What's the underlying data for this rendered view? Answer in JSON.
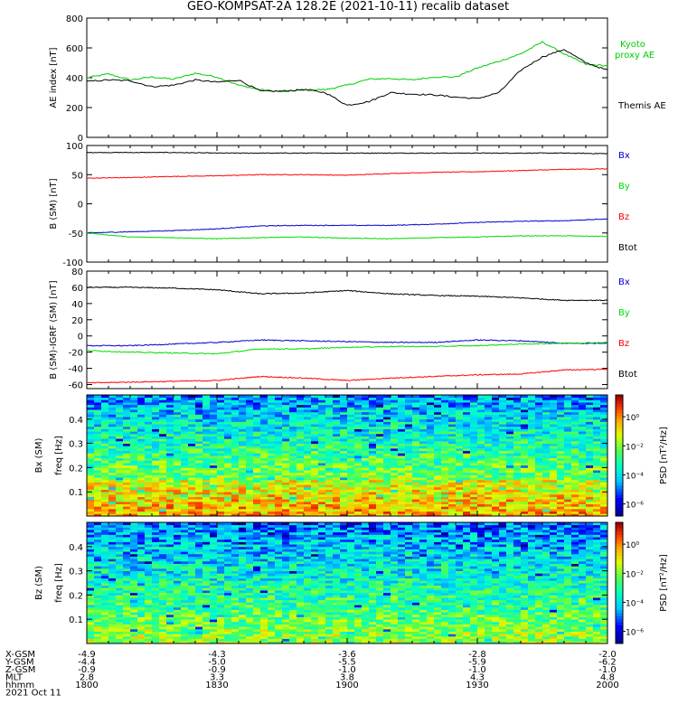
{
  "title": "GEO-KOMPSAT-2A 128.2E (2021-10-11) recalib dataset",
  "colors": {
    "black": "#000000",
    "red": "#ff0000",
    "green": "#00dd00",
    "blue": "#0000cc",
    "kyoto": "#00cc00"
  },
  "chart_data": [
    {
      "type": "line",
      "ylabel": "AE index [nT]",
      "ylim": [
        0,
        800
      ],
      "yticks": [
        "0",
        "200",
        "400",
        "600",
        "800"
      ],
      "legend": {
        "kyoto": "Kyoto proxy AE",
        "themis": "Themis AE"
      },
      "x_minutes": [
        0,
        5,
        10,
        15,
        20,
        25,
        30,
        35,
        40,
        45,
        50,
        55,
        60,
        65,
        70,
        75,
        80,
        85,
        90,
        95,
        100,
        105,
        110,
        115,
        120
      ],
      "series": [
        {
          "name": "Kyoto proxy AE",
          "color": "#00cc00",
          "values": [
            400,
            425,
            385,
            405,
            390,
            430,
            405,
            350,
            320,
            305,
            320,
            320,
            350,
            390,
            395,
            385,
            405,
            405,
            465,
            510,
            560,
            640,
            560,
            490,
            480
          ]
        },
        {
          "name": "Themis AE",
          "color": "#000000",
          "values": [
            375,
            385,
            380,
            340,
            350,
            385,
            370,
            385,
            310,
            310,
            320,
            300,
            215,
            240,
            300,
            290,
            285,
            270,
            260,
            300,
            450,
            540,
            590,
            500,
            450
          ]
        }
      ]
    },
    {
      "type": "line",
      "ylabel": "B (SM) [nT]",
      "ylim": [
        -100,
        100
      ],
      "yticks": [
        "-100",
        "-50",
        "0",
        "50",
        "100"
      ],
      "legend": [
        "Bx",
        "By",
        "Bz",
        "Btot"
      ],
      "x_minutes": [
        0,
        10,
        20,
        30,
        40,
        50,
        60,
        70,
        80,
        90,
        100,
        110,
        120
      ],
      "series": [
        {
          "name": "Btot",
          "color": "#000000",
          "values": [
            88,
            88,
            88,
            87,
            87,
            87,
            87,
            87,
            87,
            87,
            87,
            87,
            86
          ]
        },
        {
          "name": "Bz",
          "color": "#ff0000",
          "values": [
            44,
            45,
            47,
            48,
            50,
            50,
            49,
            52,
            54,
            55,
            57,
            59,
            60
          ]
        },
        {
          "name": "Bx",
          "color": "#0000cc",
          "values": [
            -50,
            -48,
            -46,
            -43,
            -38,
            -37,
            -37,
            -37,
            -35,
            -32,
            -30,
            -29,
            -26
          ]
        },
        {
          "name": "By",
          "color": "#00dd00",
          "values": [
            -50,
            -57,
            -58,
            -60,
            -58,
            -57,
            -59,
            -60,
            -58,
            -57,
            -55,
            -55,
            -56
          ]
        }
      ]
    },
    {
      "type": "line",
      "ylabel": "B (SM)-IGRF (SM) [nT]",
      "ylim": [
        -65,
        80
      ],
      "yticks": [
        "-60",
        "-40",
        "-20",
        "0",
        "20",
        "40",
        "60",
        "80"
      ],
      "legend": [
        "Bx",
        "By",
        "Bz",
        "Btot"
      ],
      "x_minutes": [
        0,
        10,
        20,
        30,
        40,
        50,
        60,
        70,
        80,
        90,
        100,
        110,
        120
      ],
      "series": [
        {
          "name": "Btot",
          "color": "#000000",
          "values": [
            60,
            60,
            59,
            57,
            52,
            53,
            56,
            52,
            50,
            49,
            47,
            44,
            44
          ]
        },
        {
          "name": "Bz",
          "color": "#ff0000",
          "values": [
            -58,
            -57,
            -56,
            -55,
            -50,
            -52,
            -55,
            -52,
            -50,
            -48,
            -47,
            -42,
            -41
          ]
        },
        {
          "name": "Bx",
          "color": "#0000cc",
          "values": [
            -12,
            -12,
            -10,
            -8,
            -5,
            -6,
            -7,
            -8,
            -8,
            -5,
            -6,
            -9,
            -9
          ]
        },
        {
          "name": "By",
          "color": "#00dd00",
          "values": [
            -18,
            -20,
            -21,
            -22,
            -16,
            -16,
            -14,
            -13,
            -13,
            -12,
            -10,
            -9,
            -8
          ]
        }
      ]
    },
    {
      "type": "heatmap",
      "ylabel": "Bx (SM) freq [Hz]",
      "ylim": [
        0,
        0.5
      ],
      "yticks": [
        "0.1",
        "0.2",
        "0.3",
        "0.4"
      ],
      "colorbar": {
        "label": "PSD [nT²/Hz]",
        "ticks": [
          "10⁰",
          "10⁻²",
          "10⁻⁴",
          "10⁻⁶"
        ]
      }
    },
    {
      "type": "heatmap",
      "ylabel": "Bz (SM) freq [Hz]",
      "ylim": [
        0,
        0.5
      ],
      "yticks": [
        "0.1",
        "0.2",
        "0.3",
        "0.4"
      ],
      "colorbar": {
        "label": "PSD [nT²/Hz]",
        "ticks": [
          "10⁰",
          "10⁻²",
          "10⁻⁴",
          "10⁻⁶"
        ]
      }
    }
  ],
  "x_axis": {
    "xlim_minutes": [
      0,
      120
    ],
    "rows": [
      {
        "label": "X-GSM",
        "values": [
          "-4.9",
          "-4.3",
          "-3.6",
          "-2.8",
          "-2.0"
        ]
      },
      {
        "label": "Y-GSM",
        "values": [
          "-4.4",
          "-5.0",
          "-5.5",
          "-5.9",
          "-6.2"
        ]
      },
      {
        "label": "Z-GSM",
        "values": [
          "-0.9",
          "-0.9",
          "-1.0",
          "-1.0",
          "-1.0"
        ]
      },
      {
        "label": "MLT",
        "values": [
          "2.8",
          "3.3",
          "3.8",
          "4.3",
          "4.8"
        ]
      },
      {
        "label": "hhmm",
        "values": [
          "1800",
          "1830",
          "1900",
          "1930",
          "2000"
        ]
      }
    ],
    "date": "2021 Oct 11"
  }
}
